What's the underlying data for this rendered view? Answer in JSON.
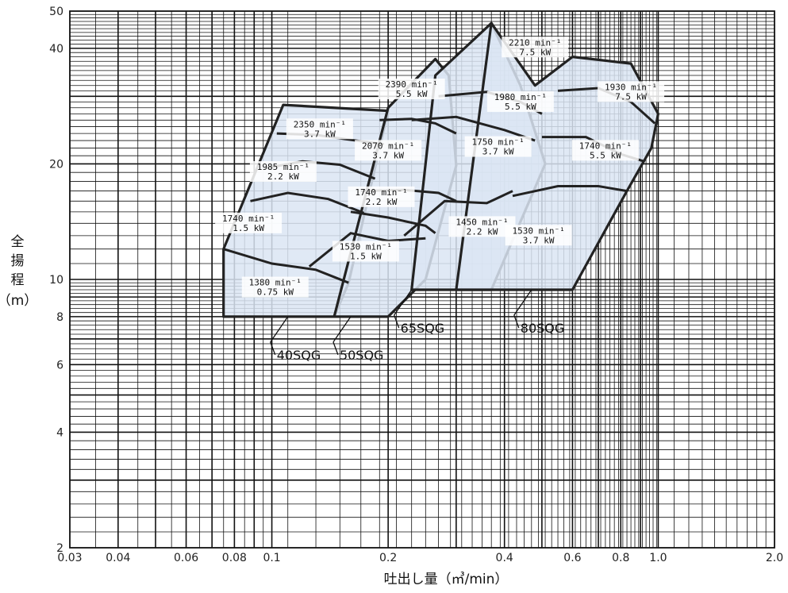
{
  "chart_data": {
    "type": "area",
    "xlabel": "吐出し量（㎥/min）",
    "ylabel": "全揚程（m）",
    "x_scale": "log",
    "y_scale": "log",
    "xlim": [
      0.03,
      2.0
    ],
    "ylim": [
      2,
      50
    ],
    "grid": true,
    "x_ticks": [
      {
        "v": 0.03,
        "label": "0.03"
      },
      {
        "v": 0.04,
        "label": "0.04"
      },
      {
        "v": 0.06,
        "label": "0.06"
      },
      {
        "v": 0.08,
        "label": "0.08"
      },
      {
        "v": 0.1,
        "label": "0.1"
      },
      {
        "v": 0.2,
        "label": "0.2"
      },
      {
        "v": 0.4,
        "label": "0.4"
      },
      {
        "v": 0.6,
        "label": "0.6"
      },
      {
        "v": 0.8,
        "label": "0.8"
      },
      {
        "v": 1.0,
        "label": "1.0"
      },
      {
        "v": 2.0,
        "label": "2.0"
      }
    ],
    "y_ticks": [
      {
        "v": 2,
        "label": "2"
      },
      {
        "v": 4,
        "label": "4"
      },
      {
        "v": 6,
        "label": "6"
      },
      {
        "v": 8,
        "label": "8"
      },
      {
        "v": 10,
        "label": "10"
      },
      {
        "v": 20,
        "label": "20"
      },
      {
        "v": 40,
        "label": "40"
      },
      {
        "v": 50,
        "label": "50"
      }
    ],
    "fill_color": "#dbe5f3",
    "series": [
      {
        "name": "40SQG",
        "outline": [
          [
            0.075,
            8
          ],
          [
            0.145,
            8
          ],
          [
            0.158,
            9.8
          ],
          [
            0.2,
            27.5
          ],
          [
            0.107,
            28.5
          ],
          [
            0.075,
            12
          ]
        ],
        "curves": [
          [
            [
              0.075,
              12
            ],
            [
              0.1,
              11
            ],
            [
              0.13,
              10.6
            ],
            [
              0.158,
              9.8
            ]
          ],
          [
            [
              0.088,
              16
            ],
            [
              0.11,
              16.8
            ],
            [
              0.14,
              16.2
            ],
            [
              0.173,
              14.9
            ]
          ],
          [
            [
              0.097,
              19.5
            ],
            [
              0.12,
              20.3
            ],
            [
              0.15,
              19.9
            ],
            [
              0.185,
              18.3
            ]
          ],
          [
            [
              0.103,
              24
            ],
            [
              0.13,
              23.8
            ],
            [
              0.16,
              23.1
            ],
            [
              0.195,
              22.5
            ]
          ]
        ],
        "labels": [
          {
            "x": 0.102,
            "y": 9.6,
            "rpm": "1380 min⁻¹",
            "kw": "0.75 kW"
          },
          {
            "x": 0.087,
            "y": 14.1,
            "rpm": "1740 min⁻¹",
            "kw": "1.5 kW"
          },
          {
            "x": 0.107,
            "y": 19.2,
            "rpm": "1985 min⁻¹",
            "kw": "2.2 kW"
          },
          {
            "x": 0.133,
            "y": 24.8,
            "rpm": "2350 min⁻¹",
            "kw": "3.7 kW"
          }
        ],
        "callout": {
          "x": 0.11,
          "y": 8,
          "label": "40SQG"
        }
      },
      {
        "name": "50SQG",
        "outline": [
          [
            0.145,
            8
          ],
          [
            0.2,
            8
          ],
          [
            0.25,
            10
          ],
          [
            0.3,
            19.8
          ],
          [
            0.287,
            34
          ],
          [
            0.265,
            37.5
          ],
          [
            0.2,
            28
          ],
          [
            0.145,
            8
          ]
        ],
        "curves": [
          [
            [
              0.125,
              10.8
            ],
            [
              0.16,
              13.2
            ],
            [
              0.2,
              12.6
            ],
            [
              0.25,
              12.8
            ]
          ],
          [
            [
              0.16,
              15
            ],
            [
              0.2,
              14.5
            ],
            [
              0.25,
              13.8
            ],
            [
              0.265,
              13.2
            ]
          ],
          [
            [
              0.17,
              17
            ],
            [
              0.22,
              17.1
            ],
            [
              0.27,
              16.8
            ],
            [
              0.3,
              16
            ]
          ],
          [
            [
              0.19,
              26
            ],
            [
              0.23,
              26.2
            ],
            [
              0.265,
              25.5
            ],
            [
              0.3,
              24
            ]
          ]
        ],
        "labels": [
          {
            "x": 0.175,
            "y": 11.9,
            "rpm": "1530 min⁻¹",
            "kw": "1.5 kW"
          },
          {
            "x": 0.192,
            "y": 16.5,
            "rpm": "1740 min⁻¹",
            "kw": "2.2 kW"
          },
          {
            "x": 0.2,
            "y": 21.8,
            "rpm": "2070 min⁻¹",
            "kw": "3.7 kW"
          },
          {
            "x": 0.23,
            "y": 31.5,
            "rpm": "2390 min⁻¹",
            "kw": "5.5 kW"
          }
        ],
        "callout": {
          "x": 0.16,
          "y": 8,
          "label": "50SQG"
        }
      },
      {
        "name": "65SQG",
        "outline": [
          [
            0.23,
            9.4
          ],
          [
            0.37,
            9.4
          ],
          [
            0.51,
            20
          ],
          [
            0.44,
            32
          ],
          [
            0.37,
            46.5
          ],
          [
            0.265,
            34
          ]
        ],
        "curves": [
          [
            [
              0.22,
              13
            ],
            [
              0.28,
              16
            ],
            [
              0.36,
              15.8
            ],
            [
              0.42,
              17
            ]
          ],
          [
            [
              0.23,
              26
            ],
            [
              0.3,
              26.5
            ],
            [
              0.4,
              24.5
            ],
            [
              0.48,
              23
            ]
          ],
          [
            [
              0.27,
              30
            ],
            [
              0.36,
              30.8
            ],
            [
              0.44,
              29
            ],
            [
              0.5,
              27
            ]
          ]
        ],
        "labels": [
          {
            "x": 0.35,
            "y": 13.8,
            "rpm": "1450 min⁻¹",
            "kw": "2.2 kW"
          },
          {
            "x": 0.385,
            "y": 22.3,
            "rpm": "1750 min⁻¹",
            "kw": "3.7 kW"
          },
          {
            "x": 0.44,
            "y": 29.2,
            "rpm": "1980 min⁻¹",
            "kw": "5.5 kW"
          },
          {
            "x": 0.48,
            "y": 40.5,
            "rpm": "2210 min⁻¹",
            "kw": "7.5 kW"
          }
        ],
        "callout": {
          "x": 0.23,
          "y": 9.4,
          "label": "65SQG"
        }
      },
      {
        "name": "80SQG",
        "outline": [
          [
            0.3,
            9.4
          ],
          [
            0.6,
            9.4
          ],
          [
            0.83,
            17
          ],
          [
            0.96,
            22
          ],
          [
            1.0,
            27
          ],
          [
            0.85,
            36.5
          ],
          [
            0.6,
            38
          ],
          [
            0.48,
            32
          ],
          [
            0.37,
            46.5
          ]
        ],
        "curves": [
          [
            [
              0.42,
              16.5
            ],
            [
              0.55,
              17.5
            ],
            [
              0.7,
              17.5
            ],
            [
              0.83,
              17
            ]
          ],
          [
            [
              0.5,
              23.5
            ],
            [
              0.65,
              23.5
            ],
            [
              0.8,
              21.2
            ],
            [
              0.92,
              20.3
            ]
          ],
          [
            [
              0.55,
              31
            ],
            [
              0.7,
              31.5
            ],
            [
              0.85,
              29
            ],
            [
              0.98,
              25.5
            ]
          ]
        ],
        "labels": [
          {
            "x": 0.49,
            "y": 13.1,
            "rpm": "1530 min⁻¹",
            "kw": "3.7 kW"
          },
          {
            "x": 0.73,
            "y": 21.8,
            "rpm": "1740 min⁻¹",
            "kw": "5.5 kW"
          },
          {
            "x": 0.85,
            "y": 31.0,
            "rpm": "1930 min⁻¹",
            "kw": "7.5 kW"
          }
        ],
        "callout": {
          "x": 0.47,
          "y": 9.4,
          "label": "80SQG"
        }
      }
    ]
  }
}
